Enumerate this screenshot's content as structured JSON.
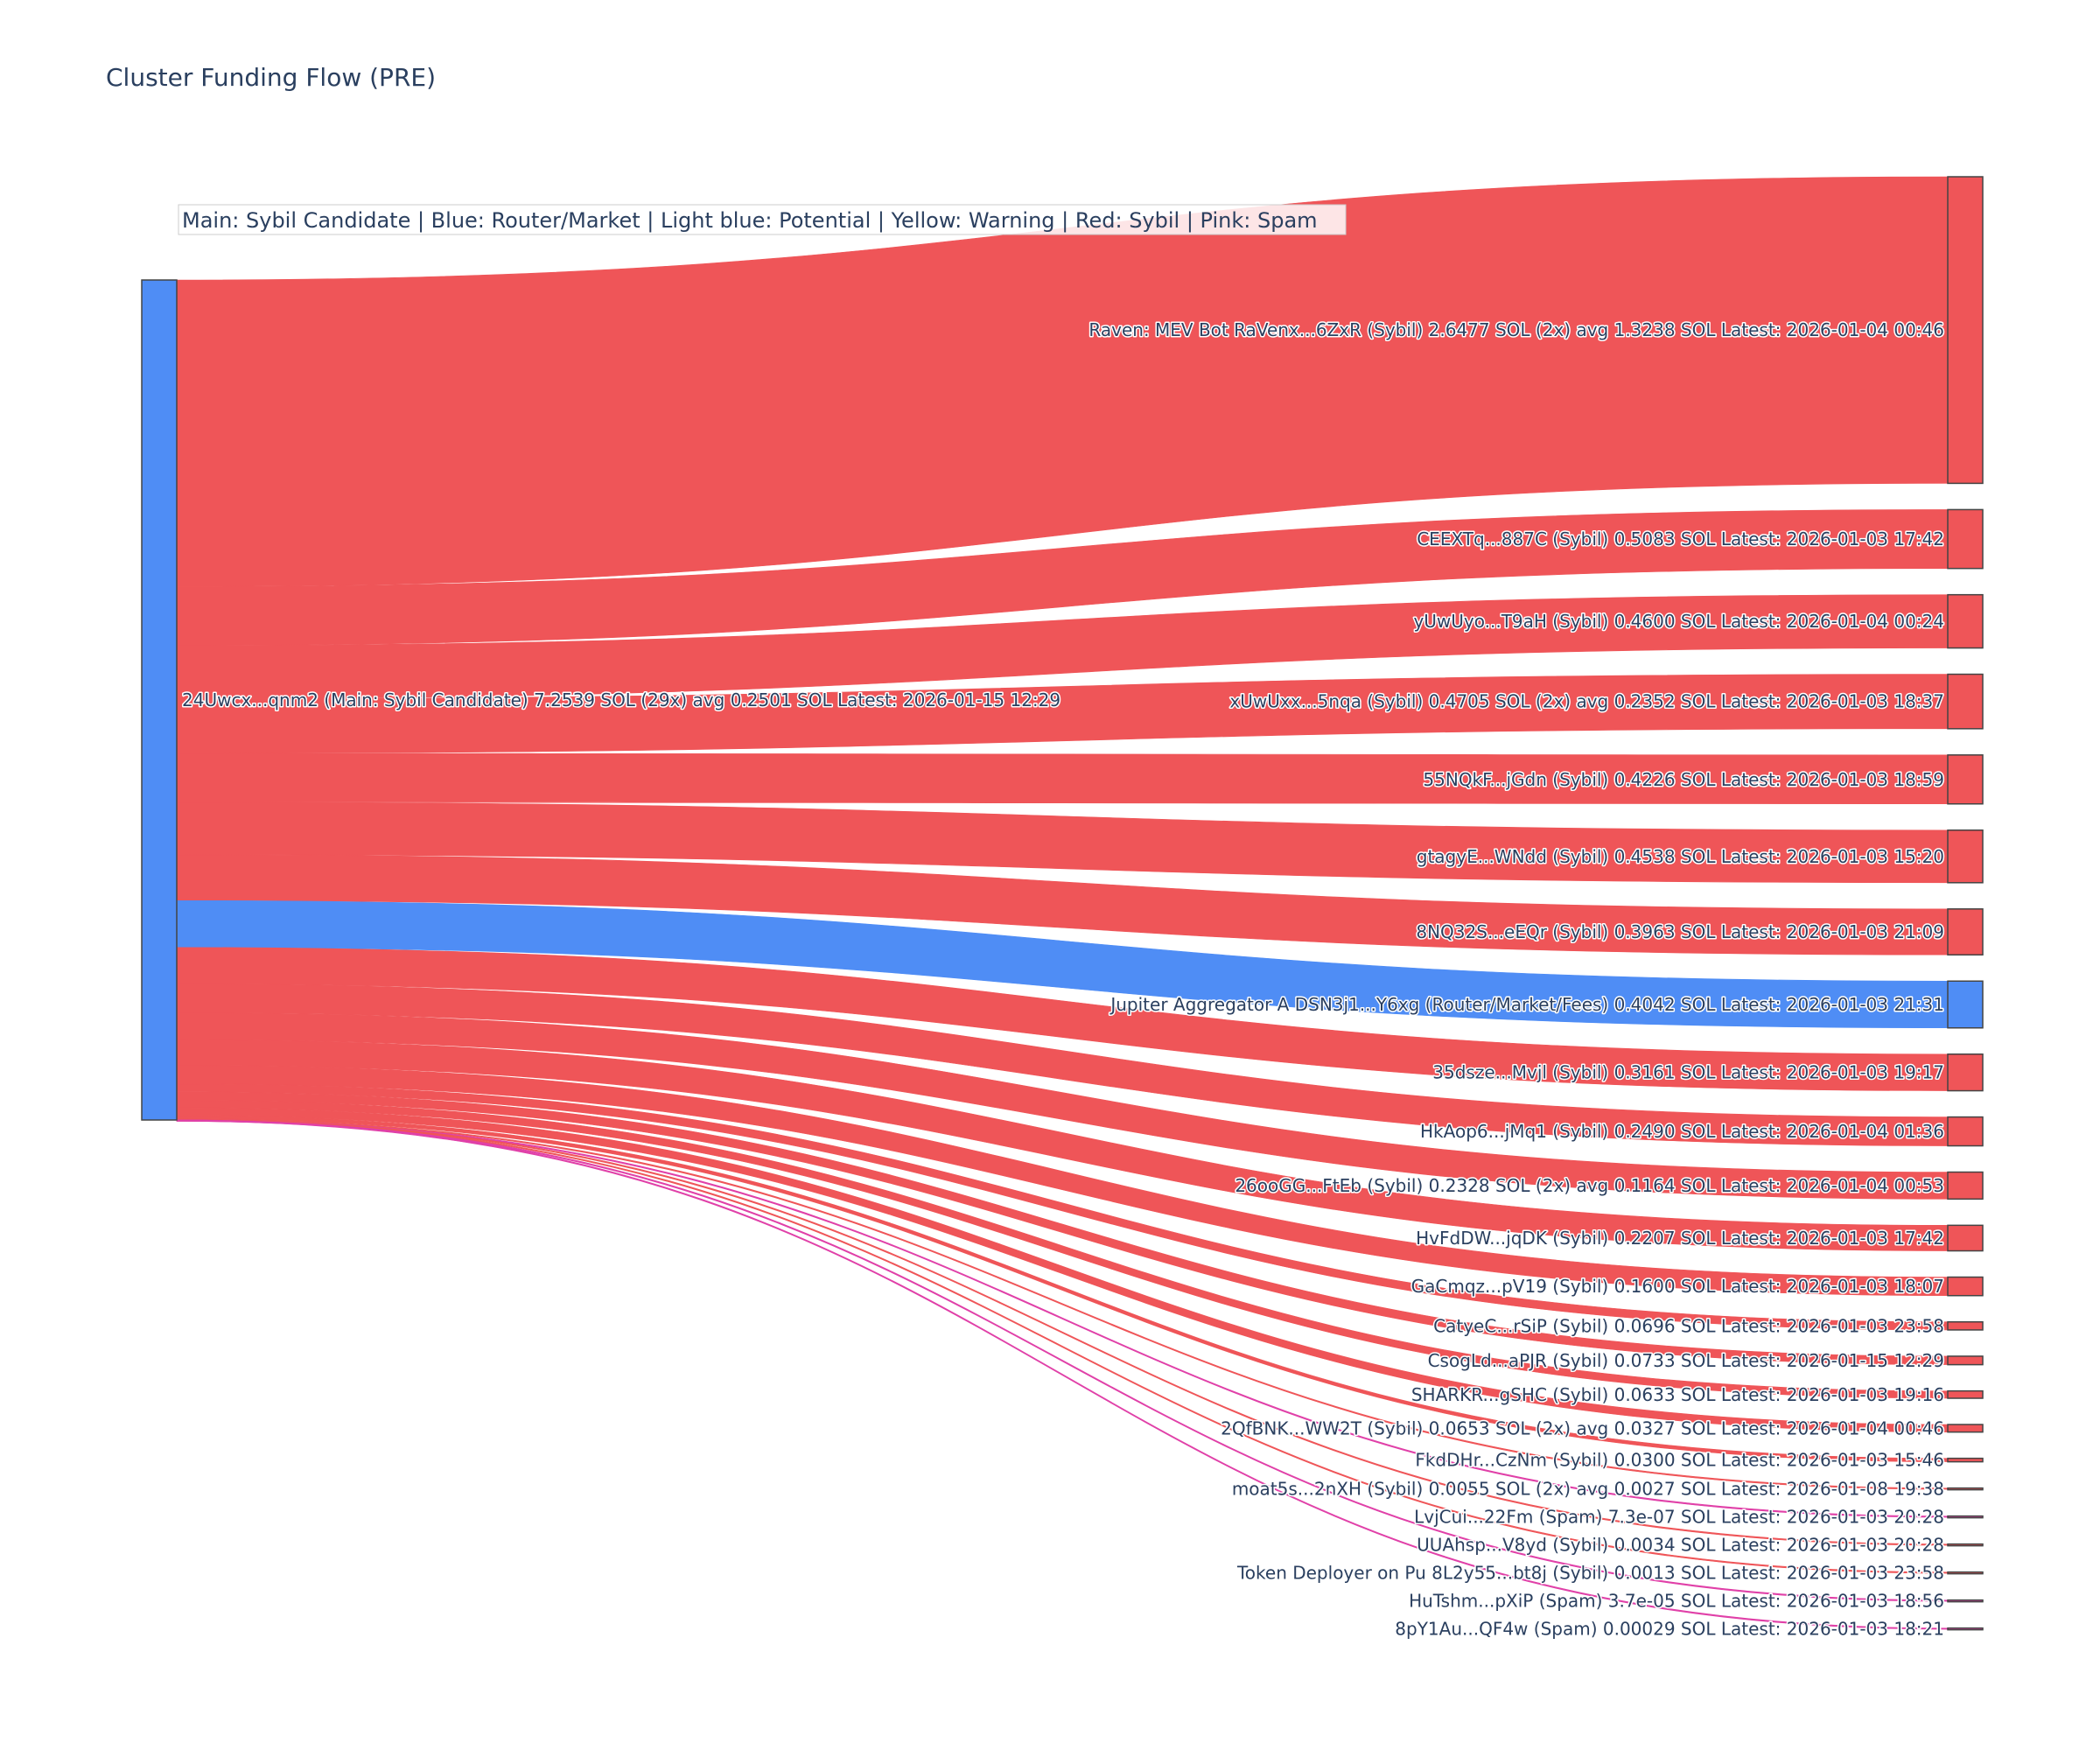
{
  "chart_data": {
    "type": "sankey",
    "title": "Cluster Funding Flow (PRE)",
    "legend": "Main: Sybil Candidate  |  Blue: Router/Market | Light blue: Potential | Yellow: Warning | Red: Sybil | Pink: Spam",
    "colors": {
      "main": "#4f8df5",
      "router": "#4f8df5",
      "sybil": "#ef5558",
      "spam": "#e040a8"
    },
    "source": {
      "label": "24Uwcx...qnm2 (Main: Sybil Candidate) 7.2539 SOL (29x) avg 0.2501 SOL Latest: 2026-01-15 12:29",
      "value": 7.2539,
      "category": "main"
    },
    "targets": [
      {
        "label": "Raven: MEV Bot RaVenx...6ZxR (Sybil) 2.6477 SOL (2x) avg 1.3238 SOL Latest: 2026-01-04 00:46",
        "value": 2.6477,
        "category": "sybil"
      },
      {
        "label": "CEEXTq...887C (Sybil) 0.5083 SOL Latest: 2026-01-03 17:42",
        "value": 0.5083,
        "category": "sybil"
      },
      {
        "label": "yUwUyo...T9aH (Sybil) 0.4600 SOL Latest: 2026-01-04 00:24",
        "value": 0.46,
        "category": "sybil"
      },
      {
        "label": "xUwUxx...5nqa (Sybil) 0.4705 SOL (2x) avg 0.2352 SOL Latest: 2026-01-03 18:37",
        "value": 0.4705,
        "category": "sybil"
      },
      {
        "label": "55NQkF...jGdn (Sybil) 0.4226 SOL Latest: 2026-01-03 18:59",
        "value": 0.4226,
        "category": "sybil"
      },
      {
        "label": "gtagyE...WNdd (Sybil) 0.4538 SOL Latest: 2026-01-03 15:20",
        "value": 0.4538,
        "category": "sybil"
      },
      {
        "label": "8NQ32S...eEQr (Sybil) 0.3963 SOL Latest: 2026-01-03 21:09",
        "value": 0.3963,
        "category": "sybil"
      },
      {
        "label": "Jupiter Aggregator A DSN3j1...Y6xg (Router/Market/Fees) 0.4042 SOL Latest: 2026-01-03 21:31",
        "value": 0.4042,
        "category": "router"
      },
      {
        "label": "35dsze...Mvjl (Sybil) 0.3161 SOL Latest: 2026-01-03 19:17",
        "value": 0.3161,
        "category": "sybil"
      },
      {
        "label": "HkAop6...jMq1 (Sybil) 0.2490 SOL Latest: 2026-01-04 01:36",
        "value": 0.249,
        "category": "sybil"
      },
      {
        "label": "26ooGG...FtEb (Sybil) 0.2328 SOL (2x) avg 0.1164 SOL Latest: 2026-01-04 00:53",
        "value": 0.2328,
        "category": "sybil"
      },
      {
        "label": "HvFdDW...jqDK (Sybil) 0.2207 SOL Latest: 2026-01-03 17:42",
        "value": 0.2207,
        "category": "sybil"
      },
      {
        "label": "GaCmqz...pV19 (Sybil) 0.1600 SOL Latest: 2026-01-03 18:07",
        "value": 0.16,
        "category": "sybil"
      },
      {
        "label": "CatyeC...rSiP (Sybil) 0.0696 SOL Latest: 2026-01-03 23:58",
        "value": 0.0696,
        "category": "sybil"
      },
      {
        "label": "CsogLd...aPJR (Sybil) 0.0733 SOL Latest: 2026-01-15 12:29",
        "value": 0.0733,
        "category": "sybil"
      },
      {
        "label": "SHARKR...gSHC (Sybil) 0.0633 SOL Latest: 2026-01-03 19:16",
        "value": 0.0633,
        "category": "sybil"
      },
      {
        "label": "2QfBNK...WW2T (Sybil) 0.0653 SOL (2x) avg 0.0327 SOL Latest: 2026-01-04 00:46",
        "value": 0.0653,
        "category": "sybil"
      },
      {
        "label": "FkdDHr...CzNm (Sybil) 0.0300 SOL Latest: 2026-01-03 15:46",
        "value": 0.03,
        "category": "sybil"
      },
      {
        "label": "moat5s...2nXH (Sybil) 0.0055 SOL (2x) avg 0.0027 SOL Latest: 2026-01-08 19:38",
        "value": 0.0055,
        "category": "sybil"
      },
      {
        "label": "LvjCui...22Fm (Spam) 7.3e-07 SOL Latest: 2026-01-03 20:28",
        "value": 7.3e-07,
        "category": "spam"
      },
      {
        "label": "UUAhsp...V8yd (Sybil) 0.0034 SOL Latest: 2026-01-03 20:28",
        "value": 0.0034,
        "category": "sybil"
      },
      {
        "label": "Token Deployer on Pu 8L2y55...bt8j (Sybil) 0.0013 SOL Latest: 2026-01-03 23:58",
        "value": 0.0013,
        "category": "sybil"
      },
      {
        "label": "HuTshm...pXiP (Spam) 3.7e-05 SOL Latest: 2026-01-03 18:56",
        "value": 3.7e-05,
        "category": "spam"
      },
      {
        "label": "8pY1Au...QF4w (Spam) 0.00029 SOL Latest: 2026-01-03 18:21",
        "value": 0.00029,
        "category": "spam"
      }
    ]
  }
}
